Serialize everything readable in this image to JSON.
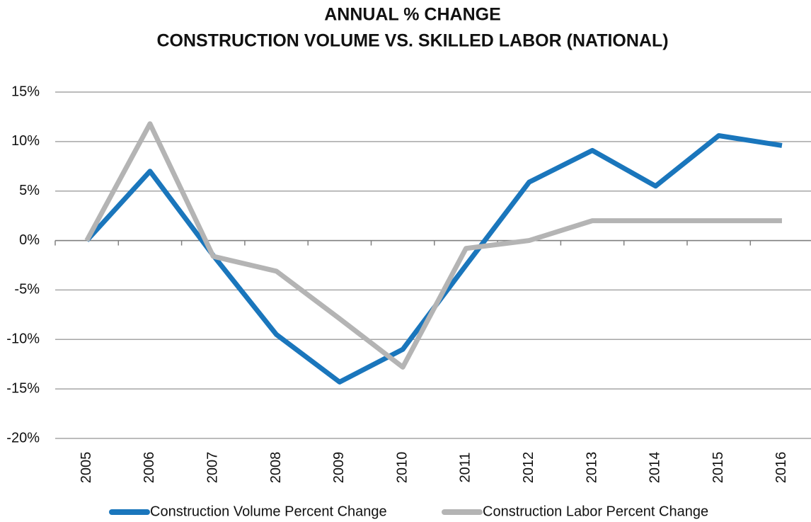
{
  "chart_data": {
    "type": "line",
    "title": [
      "ANNUAL % CHANGE",
      "CONSTRUCTION VOLUME VS. SKILLED LABOR (NATIONAL)"
    ],
    "categories": [
      "2005",
      "2006",
      "2007",
      "2008",
      "2009",
      "2010",
      "2011",
      "2012",
      "2013",
      "2014",
      "2015",
      "2016"
    ],
    "series": [
      {
        "name": "Construction Volume Percent Change",
        "color": "#1a76bc",
        "values": [
          0,
          7,
          -1.5,
          -9.5,
          -14.3,
          -11,
          -2.5,
          5.9,
          9.1,
          5.5,
          10.6,
          9.6
        ]
      },
      {
        "name": "Construction Labor Percent Change",
        "color": "#b4b4b4",
        "values": [
          0,
          11.8,
          -1.6,
          -3.1,
          -7.9,
          -12.8,
          -0.8,
          0,
          2,
          2,
          2,
          2
        ]
      }
    ],
    "ylim": [
      -20,
      15
    ],
    "yticks": [
      {
        "value": -20,
        "label": "-20%"
      },
      {
        "value": -15,
        "label": "-15%"
      },
      {
        "value": -10,
        "label": "-10%"
      },
      {
        "value": -5,
        "label": "-5%"
      },
      {
        "value": 0,
        "label": "0%"
      },
      {
        "value": 5,
        "label": "5%"
      },
      {
        "value": 10,
        "label": "10%"
      },
      {
        "value": 15,
        "label": "15%"
      }
    ],
    "grid": true,
    "legend": "bottom"
  }
}
